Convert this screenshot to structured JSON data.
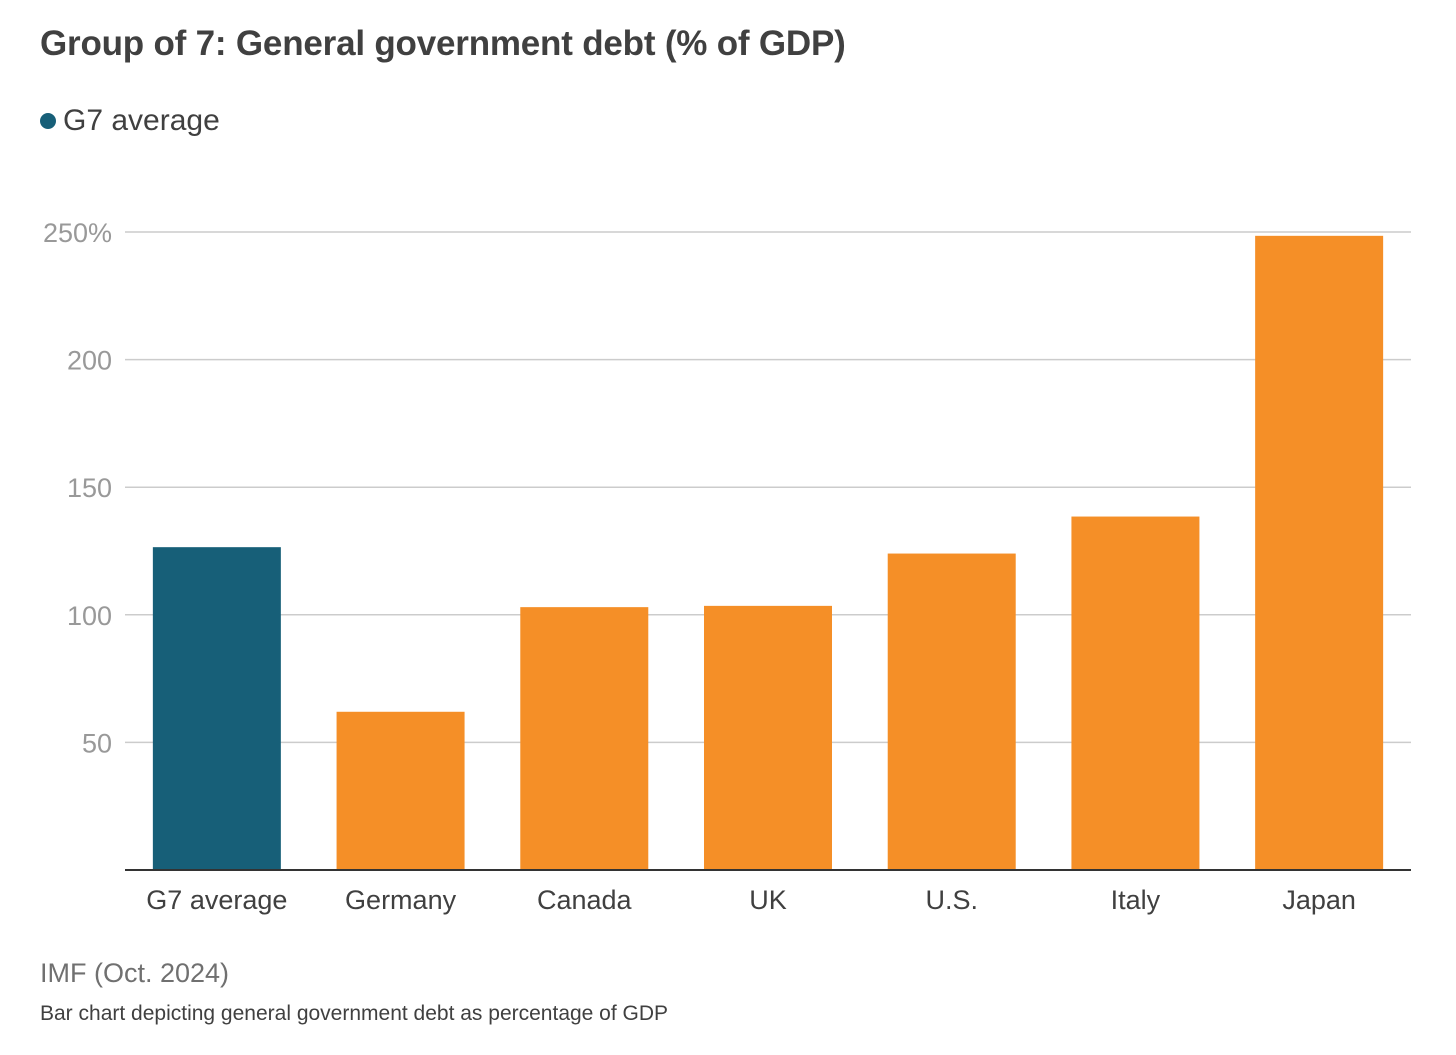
{
  "chart_data": {
    "type": "bar",
    "title": "Group of 7: General government debt (% of GDP)",
    "legend": {
      "label": "G7 average",
      "color": "#175f78",
      "placement": "top-left"
    },
    "categories": [
      "G7 average",
      "Germany",
      "Canada",
      "UK",
      "U.S.",
      "Italy",
      "Japan"
    ],
    "values": [
      126.5,
      62,
      103,
      103.5,
      124,
      138.5,
      248.5
    ],
    "highlight_index": 0,
    "colors": {
      "highlight": "#175f78",
      "default": "#f58f27",
      "grid": "#cccccc",
      "axis": "#333333",
      "tick_label": "#999999",
      "category_label": "#404040"
    },
    "ylim": [
      0,
      250
    ],
    "yticks": [
      {
        "value": 50,
        "label": "50"
      },
      {
        "value": 100,
        "label": "100"
      },
      {
        "value": 150,
        "label": "150"
      },
      {
        "value": 200,
        "label": "200"
      },
      {
        "value": 250,
        "label": "250%"
      }
    ],
    "xlabel": "",
    "ylabel": "",
    "grid": true
  },
  "source": "IMF (Oct. 2024)",
  "caption": "Bar chart depicting general government debt as percentage of GDP"
}
